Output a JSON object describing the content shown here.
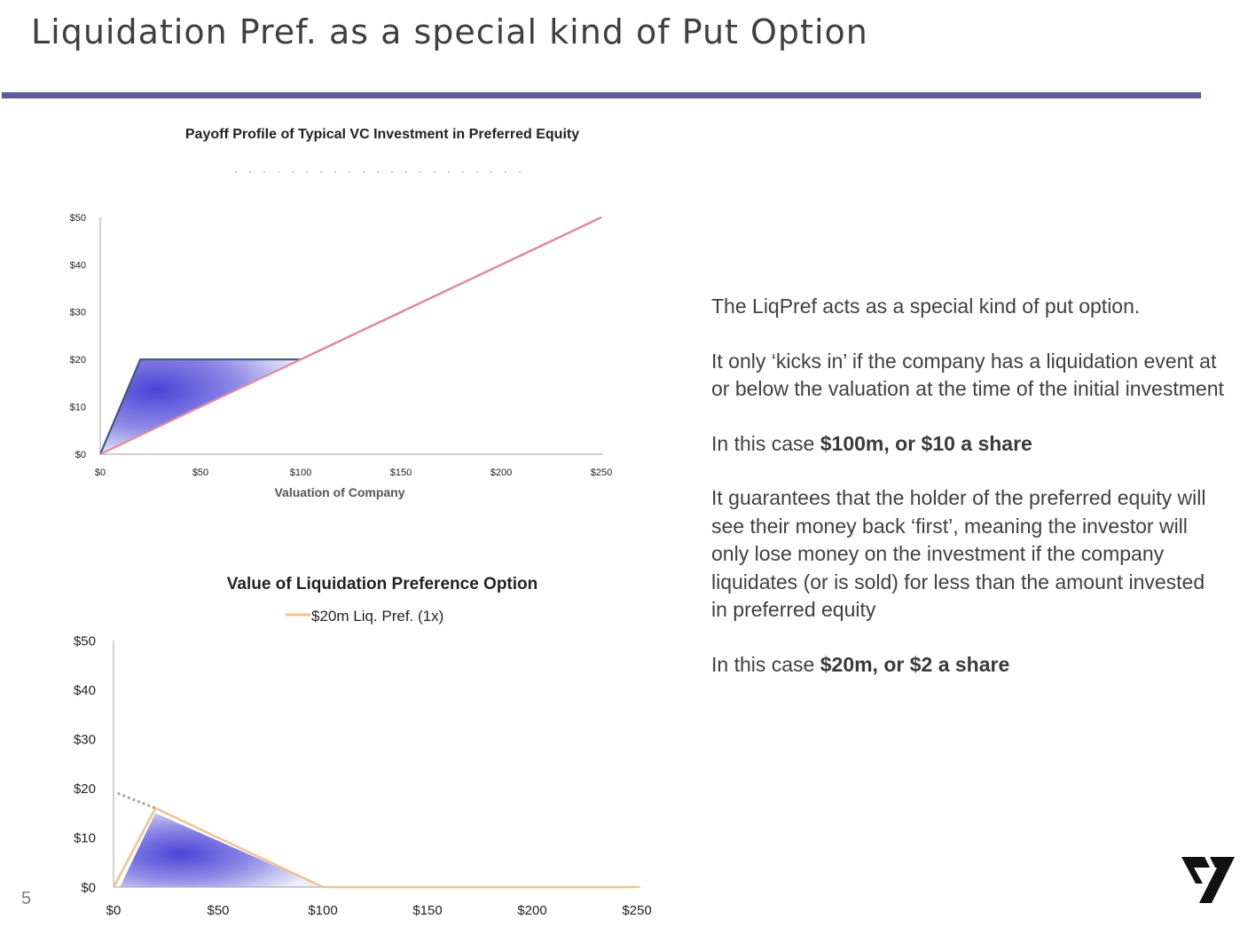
{
  "slide": {
    "title": "Liquidation Pref. as a special kind of Put Option",
    "page_number": "5"
  },
  "text_panel": {
    "p1": "The LiqPref acts as a special kind of put option.",
    "p2": "It only ‘kicks in’ if the company has a liquidation event at or below the valuation at the time of the initial investment",
    "p3_prefix": "In this case ",
    "p3_bold": "$100m, or $10 a share",
    "p4": "It guarantees that the holder of the preferred equity will see their money back ‘first’, meaning the investor will only lose money on the investment if the company liquidates (or is sold) for less than the amount invested in preferred equity",
    "p5_prefix": "In this case ",
    "p5_bold": "$20m, or $2 a share"
  },
  "colors": {
    "title_rule": "#5b5b99",
    "preferred_line": "#3f5585",
    "common_line": "#e8889a",
    "liq_pref_line": "#f5c08e",
    "shade": "#4b43d6",
    "dotted_line": "#a6a6a6"
  },
  "chart_data": [
    {
      "type": "line",
      "title": "Payoff Profile of Typical VC Investment in Preferred Equity",
      "xlabel": "Valuation of Company",
      "ylabel": "",
      "xlim": [
        0,
        250
      ],
      "ylim": [
        0,
        50
      ],
      "x_ticks": [
        "$0",
        "$50",
        "$100",
        "$150",
        "$200",
        "$250"
      ],
      "y_ticks": [
        "$0",
        "$10",
        "$20",
        "$30",
        "$40",
        "$50"
      ],
      "grid": false,
      "series": [
        {
          "x": [
            0,
            20,
            100,
            250
          ],
          "y": [
            0,
            20,
            20,
            50
          ],
          "color": "#3f5585"
        },
        {
          "x": [
            0,
            250
          ],
          "y": [
            0,
            50
          ],
          "color": "#e8889a"
        }
      ],
      "shaded_region": {
        "x": [
          0,
          20,
          100,
          0
        ],
        "y": [
          0,
          20,
          20,
          0
        ]
      }
    },
    {
      "type": "line",
      "title": "Value of Liquidation Preference Option",
      "xlabel": "",
      "ylabel": "",
      "xlim": [
        0,
        250
      ],
      "ylim": [
        0,
        50
      ],
      "x_ticks": [
        "$0",
        "$50",
        "$100",
        "$150",
        "$200",
        "$250"
      ],
      "y_ticks": [
        "$0",
        "$10",
        "$20",
        "$30",
        "$40",
        "$50"
      ],
      "grid": false,
      "legend": "top-center",
      "series": [
        {
          "name": "$20m Liq. Pref. (1x)",
          "x": [
            0,
            20,
            100,
            250
          ],
          "y": [
            0,
            16,
            0,
            0
          ],
          "color": "#f5c08e"
        },
        {
          "x": [
            2,
            20
          ],
          "y": [
            19,
            16
          ],
          "color": "#a6a6a6",
          "dashed": true
        }
      ],
      "shaded_region": {
        "x": [
          3,
          20,
          100,
          3
        ],
        "y": [
          0,
          15,
          0,
          0
        ]
      }
    }
  ]
}
